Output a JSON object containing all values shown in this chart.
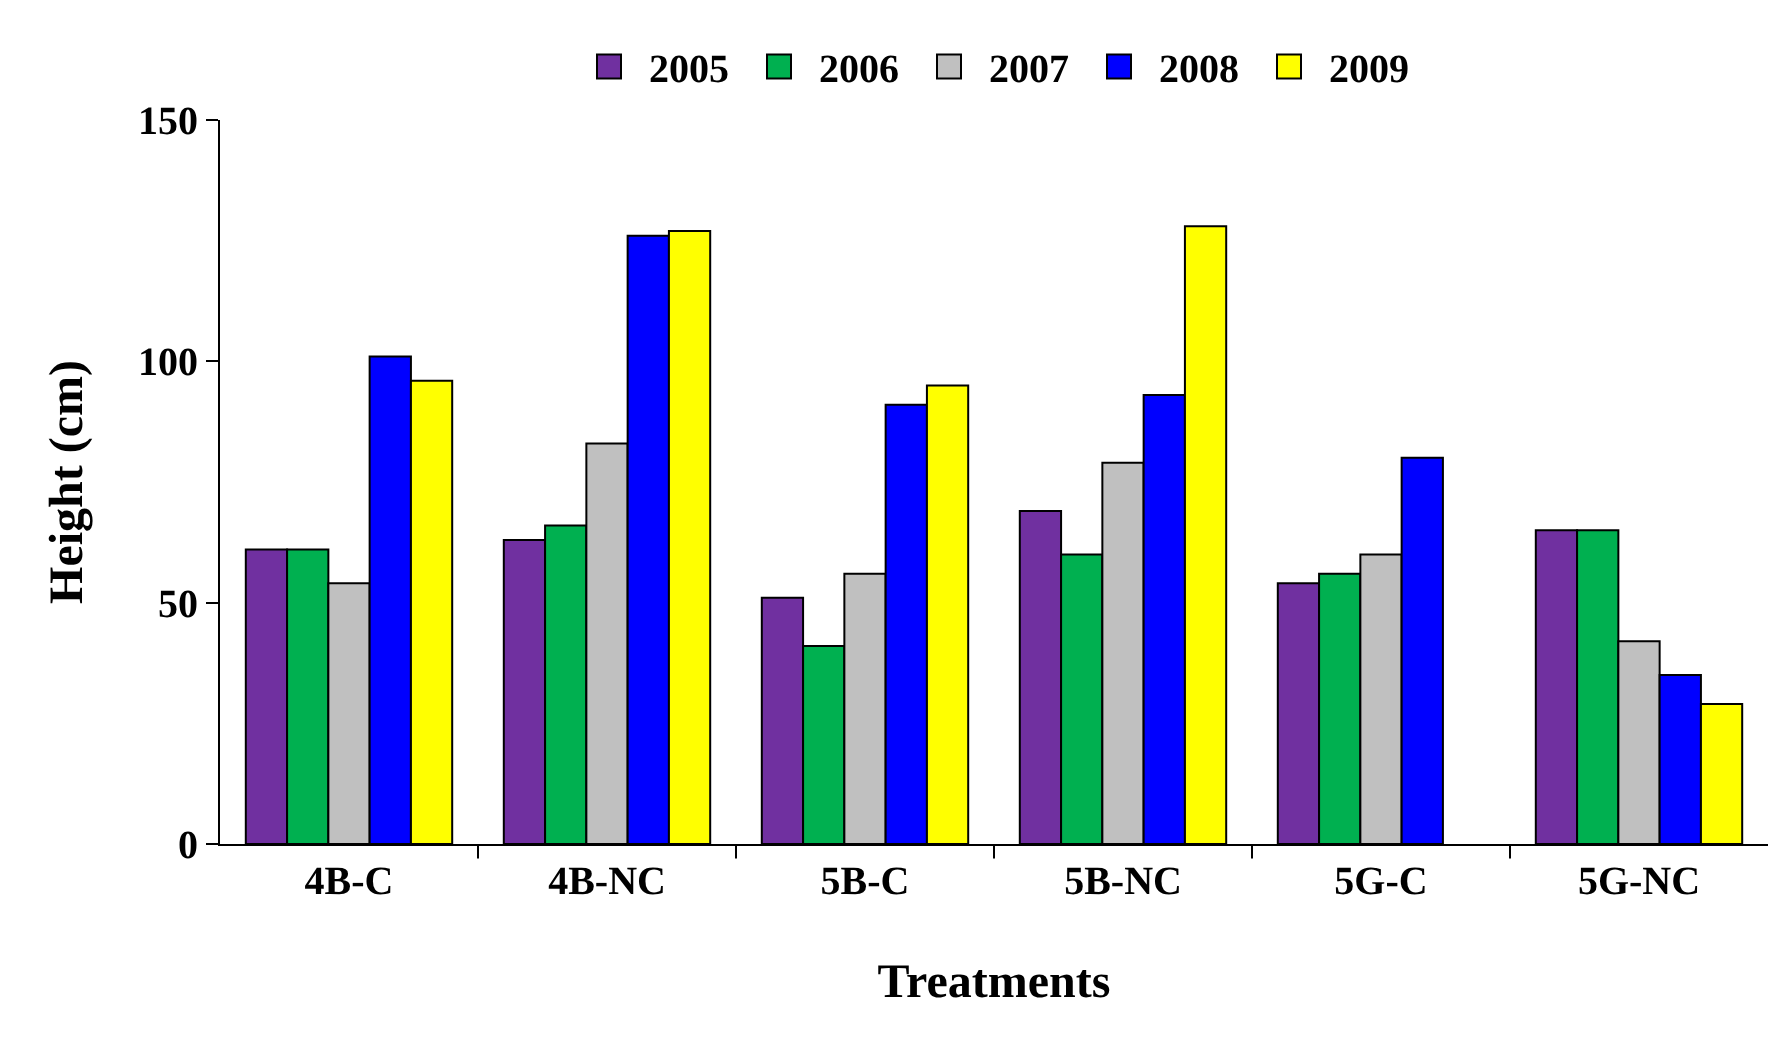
{
  "chart_data": {
    "type": "bar",
    "xlabel": "Treatments",
    "ylabel": "Height (cm)",
    "categories": [
      "4B-C",
      "4B-NC",
      "5B-C",
      "5B-NC",
      "5G-C",
      "5G-NC"
    ],
    "series": [
      {
        "name": "2005",
        "color": "#7030a0",
        "values": [
          61,
          63,
          51,
          69,
          54,
          65
        ]
      },
      {
        "name": "2006",
        "color": "#00b050",
        "values": [
          61,
          66,
          41,
          60,
          56,
          65
        ]
      },
      {
        "name": "2007",
        "color": "#c0c0c0",
        "values": [
          54,
          83,
          56,
          79,
          60,
          42
        ]
      },
      {
        "name": "2008",
        "color": "#0000ff",
        "values": [
          101,
          126,
          91,
          93,
          80,
          35
        ]
      },
      {
        "name": "2009",
        "color": "#ffff00",
        "values": [
          96,
          127,
          95,
          128,
          null,
          29
        ]
      }
    ],
    "ylim": [
      0,
      150
    ],
    "yticks": [
      0,
      50,
      100,
      150
    ],
    "grid": false,
    "legend": "top"
  }
}
